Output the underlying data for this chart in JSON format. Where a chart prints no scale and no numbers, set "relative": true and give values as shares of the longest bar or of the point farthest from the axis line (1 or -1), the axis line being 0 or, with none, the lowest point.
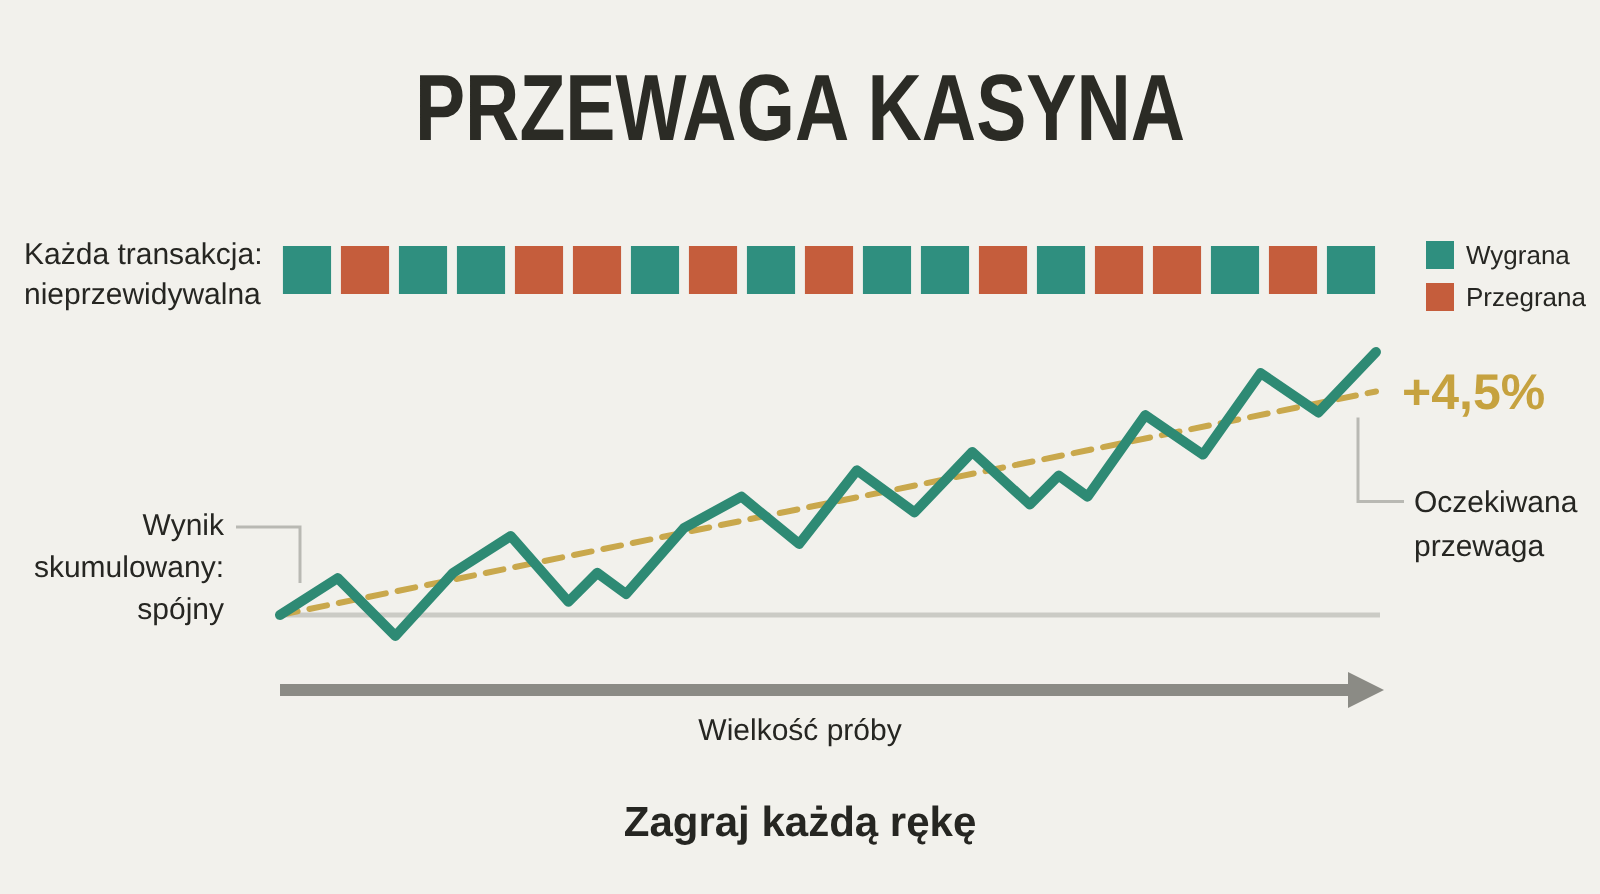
{
  "chart_data": [
    {
      "type": "bar",
      "title": "PRZEWAGA KASYNA",
      "relative": true,
      "stacked": true,
      "legend": "right",
      "annotations": [
        "Każda transakcja: nieprzewidywalna"
      ],
      "categories": [
        null,
        null,
        null,
        null,
        null,
        null,
        null,
        null,
        null,
        null,
        null,
        null,
        null,
        null,
        null,
        null,
        null,
        null,
        null
      ],
      "series": [
        {
          "name": "Wygrana",
          "color": "#2f8f7f",
          "values": [
            1,
            null,
            1,
            1,
            null,
            null,
            1,
            null,
            1,
            null,
            1,
            1,
            null,
            1,
            null,
            null,
            1,
            null,
            1
          ]
        },
        {
          "name": "Przegrana",
          "color": "#c55d3c",
          "values": [
            null,
            1,
            null,
            null,
            1,
            1,
            null,
            1,
            null,
            1,
            null,
            null,
            1,
            null,
            1,
            1,
            null,
            1,
            null
          ]
        }
      ]
    },
    {
      "type": "line",
      "relative": true,
      "xlabel": "Wielkość próby",
      "annotations": [
        "+4,5%",
        "Zagraj każdą rękę"
      ],
      "categories": [
        null,
        null,
        null,
        null,
        null,
        null,
        null,
        null,
        null,
        null,
        null,
        null,
        null,
        null,
        null,
        null,
        null,
        null,
        null,
        null,
        null,
        null,
        null,
        null,
        null,
        null,
        null,
        null,
        null,
        null,
        null,
        null,
        null,
        null,
        null,
        null,
        null,
        null,
        null
      ],
      "series": [
        {
          "name": "Wynik skumulowany: spójny",
          "color": "#2e8a74",
          "values": [
            0,
            null,
            0.14,
            null,
            -0.08,
            null,
            0.16,
            null,
            0.3,
            null,
            0.05,
            0.16,
            0.08,
            null,
            0.33,
            null,
            0.45,
            null,
            0.27,
            null,
            0.55,
            null,
            0.39,
            null,
            0.62,
            null,
            0.42,
            0.53,
            0.45,
            null,
            0.76,
            null,
            0.61,
            null,
            0.92,
            null,
            0.77,
            null,
            1
          ]
        },
        {
          "name": "Oczekiwana przewaga",
          "color": "#c9a84c",
          "line_style": "dashed",
          "values": [
            0,
            null,
            null,
            null,
            null,
            null,
            null,
            null,
            null,
            null,
            null,
            null,
            null,
            null,
            null,
            null,
            null,
            null,
            null,
            null,
            null,
            null,
            null,
            null,
            null,
            null,
            null,
            null,
            null,
            null,
            null,
            null,
            null,
            null,
            null,
            null,
            null,
            null,
            0.85
          ]
        }
      ]
    }
  ]
}
